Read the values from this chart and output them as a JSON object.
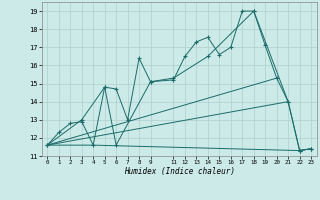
{
  "title": "",
  "xlabel": "Humidex (Indice chaleur)",
  "background_color": "#cceae7",
  "grid_color": "#b0d0cc",
  "line_color": "#1a6b6b",
  "xlim": [
    -0.5,
    23.5
  ],
  "ylim": [
    11,
    19.5
  ],
  "xticks": [
    0,
    1,
    2,
    3,
    4,
    5,
    6,
    7,
    8,
    9,
    11,
    12,
    13,
    14,
    15,
    16,
    17,
    18,
    19,
    20,
    21,
    22,
    23
  ],
  "yticks": [
    11,
    12,
    13,
    14,
    15,
    16,
    17,
    18,
    19
  ],
  "series1_x": [
    0,
    1,
    2,
    3,
    4,
    5,
    6,
    7,
    8,
    9,
    11,
    12,
    13,
    14,
    15,
    16,
    17,
    18,
    19,
    20,
    21,
    22,
    23
  ],
  "series1_y": [
    11.6,
    12.3,
    12.8,
    12.9,
    11.6,
    14.8,
    14.7,
    13.0,
    16.4,
    15.1,
    15.2,
    16.5,
    17.3,
    17.55,
    16.6,
    17.0,
    19.0,
    19.0,
    17.1,
    15.3,
    14.0,
    11.3,
    11.4
  ],
  "series2_x": [
    0,
    3,
    5,
    6,
    9,
    11,
    14,
    18,
    21,
    22,
    23
  ],
  "series2_y": [
    11.6,
    13.0,
    14.8,
    11.6,
    15.1,
    15.3,
    16.5,
    19.0,
    14.0,
    11.3,
    11.4
  ],
  "series3_x": [
    0,
    20
  ],
  "series3_y": [
    11.6,
    15.3
  ],
  "series4_x": [
    0,
    21
  ],
  "series4_y": [
    11.6,
    14.0
  ],
  "series5_x": [
    0,
    4,
    22,
    23
  ],
  "series5_y": [
    11.6,
    11.6,
    11.3,
    11.4
  ]
}
